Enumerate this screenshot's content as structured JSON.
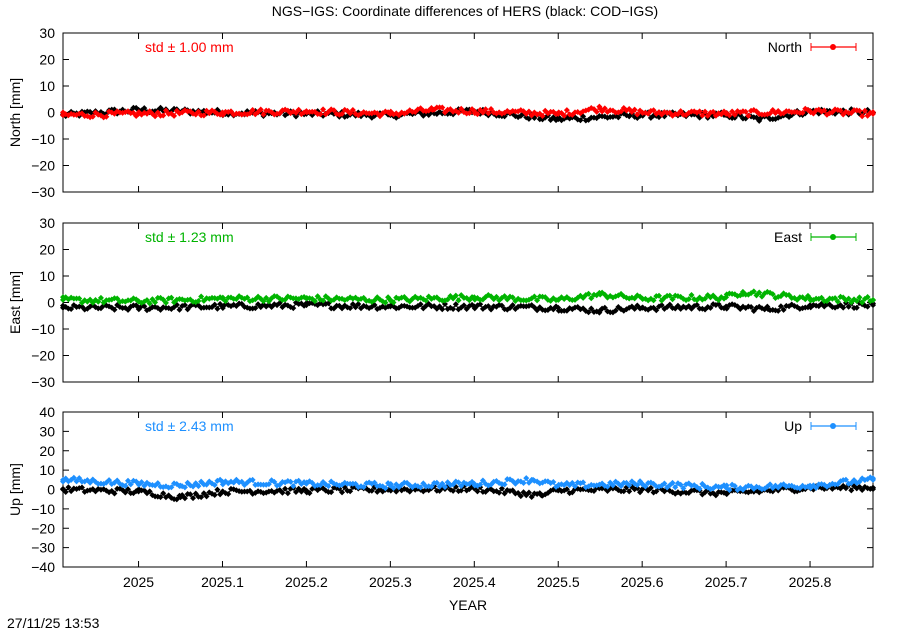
{
  "title": "NGS−IGS: Coordinate differences of HERS (black: COD−IGS)",
  "timestamp": "27/11/25 13:53",
  "chart_data": {
    "type": "scatter",
    "xlabel": "YEAR",
    "xlim": [
      2024.91,
      2025.875
    ],
    "xticks": [
      2025,
      2025.1,
      2025.2,
      2025.3,
      2025.4,
      2025.5,
      2025.6,
      2025.7,
      2025.8
    ],
    "xtick_labels": [
      "2025",
      "2025.1",
      "2025.2",
      "2025.3",
      "2025.4",
      "2025.5",
      "2025.6",
      "2025.7",
      "2025.8"
    ],
    "panels": [
      {
        "ylabel": "North [mm]",
        "ylim": [
          -30,
          30
        ],
        "yticks": [
          -30,
          -20,
          -10,
          0,
          10,
          20,
          30
        ],
        "ytick_labels": [
          "−30",
          "−20",
          "−10",
          "0",
          "10",
          "20",
          "30"
        ],
        "std_label": "std ± 1.00 mm",
        "legend": "North",
        "color": "#ff0000",
        "series": [
          {
            "name": "NGS−IGS",
            "color": "#ff0000",
            "x": [
              2024.91,
              2025.0,
              2025.1,
              2025.2,
              2025.3,
              2025.35,
              2025.4,
              2025.5,
              2025.55,
              2025.6,
              2025.7,
              2025.8,
              2025.875
            ],
            "y": [
              -1.0,
              -0.5,
              0.0,
              0.5,
              -0.5,
              1.0,
              0.5,
              -0.5,
              1.5,
              0.0,
              -0.5,
              0.5,
              -0.5
            ]
          },
          {
            "name": "COD−IGS",
            "color": "#000000",
            "x": [
              2024.91,
              2025.0,
              2025.1,
              2025.2,
              2025.3,
              2025.4,
              2025.48,
              2025.5,
              2025.6,
              2025.7,
              2025.74,
              2025.8,
              2025.875
            ],
            "y": [
              -1.0,
              1.0,
              0.0,
              -0.5,
              -1.0,
              0.5,
              -2.0,
              -2.5,
              -1.0,
              -1.0,
              -2.5,
              0.5,
              0.0
            ]
          }
        ]
      },
      {
        "ylabel": "East [mm]",
        "ylim": [
          -30,
          30
        ],
        "yticks": [
          -30,
          -20,
          -10,
          0,
          10,
          20,
          30
        ],
        "ytick_labels": [
          "−30",
          "−20",
          "−10",
          "0",
          "10",
          "20",
          "30"
        ],
        "std_label": "std ± 1.23 mm",
        "legend": "East",
        "color": "#00b400",
        "series": [
          {
            "name": "NGS−IGS",
            "color": "#00b400",
            "x": [
              2024.91,
              2025.0,
              2025.1,
              2025.2,
              2025.3,
              2025.4,
              2025.5,
              2025.55,
              2025.6,
              2025.7,
              2025.72,
              2025.8,
              2025.875
            ],
            "y": [
              1.0,
              0.5,
              1.5,
              1.5,
              1.0,
              2.0,
              1.0,
              3.0,
              1.5,
              2.0,
              4.0,
              1.5,
              1.0
            ]
          },
          {
            "name": "COD−IGS",
            "color": "#000000",
            "x": [
              2024.91,
              2025.0,
              2025.1,
              2025.2,
              2025.3,
              2025.4,
              2025.5,
              2025.55,
              2025.6,
              2025.7,
              2025.75,
              2025.8,
              2025.875
            ],
            "y": [
              -2.0,
              -2.0,
              -1.5,
              -1.0,
              -1.5,
              -1.5,
              -2.0,
              -3.0,
              -2.0,
              -1.5,
              -2.5,
              -1.0,
              -1.0
            ]
          }
        ]
      },
      {
        "ylabel": "Up [mm]",
        "ylim": [
          -40,
          40
        ],
        "yticks": [
          -40,
          -30,
          -20,
          -10,
          0,
          10,
          20,
          30,
          40
        ],
        "ytick_labels": [
          "−40",
          "−30",
          "−20",
          "−10",
          "0",
          "10",
          "20",
          "30",
          "40"
        ],
        "std_label": "std ± 2.43 mm",
        "legend": "Up",
        "color": "#1e90ff",
        "series": [
          {
            "name": "NGS−IGS",
            "color": "#1e90ff",
            "x": [
              2024.91,
              2025.0,
              2025.05,
              2025.1,
              2025.2,
              2025.3,
              2025.4,
              2025.47,
              2025.5,
              2025.6,
              2025.7,
              2025.8,
              2025.875
            ],
            "y": [
              5.0,
              3.0,
              2.0,
              4.0,
              3.0,
              2.0,
              3.0,
              5.0,
              2.0,
              3.0,
              1.0,
              2.0,
              5.0
            ]
          },
          {
            "name": "COD−IGS",
            "color": "#000000",
            "x": [
              2024.91,
              2025.0,
              2025.05,
              2025.1,
              2025.2,
              2025.3,
              2025.4,
              2025.48,
              2025.5,
              2025.6,
              2025.7,
              2025.8,
              2025.875
            ],
            "y": [
              0.0,
              -1.0,
              -4.0,
              -1.0,
              -0.5,
              0.0,
              0.5,
              -3.0,
              -0.5,
              0.0,
              -2.0,
              1.0,
              1.0
            ]
          }
        ]
      }
    ]
  }
}
